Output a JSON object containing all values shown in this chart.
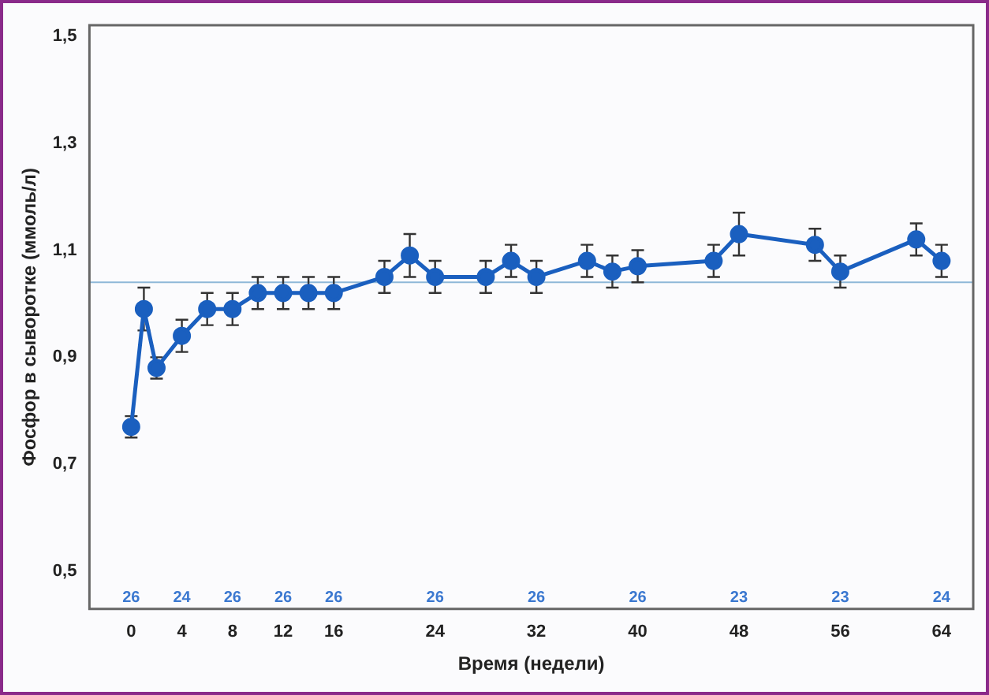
{
  "chart_data": {
    "type": "line",
    "xlabel": "Время (недели)",
    "ylabel": "Фосфор в сыворотке (ммоль/л)",
    "x": [
      0,
      1,
      2,
      4,
      6,
      8,
      10,
      12,
      14,
      16,
      20,
      22,
      24,
      28,
      30,
      32,
      36,
      38,
      40,
      46,
      48,
      54,
      56,
      62,
      64
    ],
    "series": [
      {
        "color": "#1a5fbf",
        "values": [
          0.77,
          0.99,
          0.88,
          0.94,
          0.99,
          0.99,
          1.02,
          1.02,
          1.02,
          1.02,
          1.05,
          1.09,
          1.05,
          1.05,
          1.08,
          1.05,
          1.08,
          1.06,
          1.07,
          1.08,
          1.13,
          1.11,
          1.06,
          1.12,
          1.08
        ],
        "errors": [
          0.02,
          0.04,
          0.02,
          0.03,
          0.03,
          0.03,
          0.03,
          0.03,
          0.03,
          0.03,
          0.03,
          0.04,
          0.03,
          0.03,
          0.03,
          0.03,
          0.03,
          0.03,
          0.03,
          0.03,
          0.04,
          0.03,
          0.03,
          0.03,
          0.03
        ]
      }
    ],
    "xlim": [
      -3.3,
      66.5
    ],
    "xticks": [
      0,
      4,
      8,
      12,
      16,
      24,
      32,
      40,
      48,
      56,
      64
    ],
    "ylim": [
      0.43,
      1.52
    ],
    "yticks": [
      {
        "value": 0.5,
        "label": "0,5"
      },
      {
        "value": 0.7,
        "label": "0,7"
      },
      {
        "value": 0.9,
        "label": "0,9"
      },
      {
        "value": 1.1,
        "label": "1,1"
      },
      {
        "value": 1.3,
        "label": "1,3"
      },
      {
        "value": 1.5,
        "label": "1,5"
      }
    ],
    "ref_lines": [
      {
        "axis": "y",
        "value": 1.04,
        "color": "#8fb8d8"
      }
    ],
    "annotations": [
      "26",
      "24",
      "26",
      "26",
      "26",
      "26",
      "26",
      "26",
      "23",
      "23",
      "24"
    ],
    "grid": false,
    "legend": false,
    "marker": "circle",
    "line_style": "solid"
  }
}
